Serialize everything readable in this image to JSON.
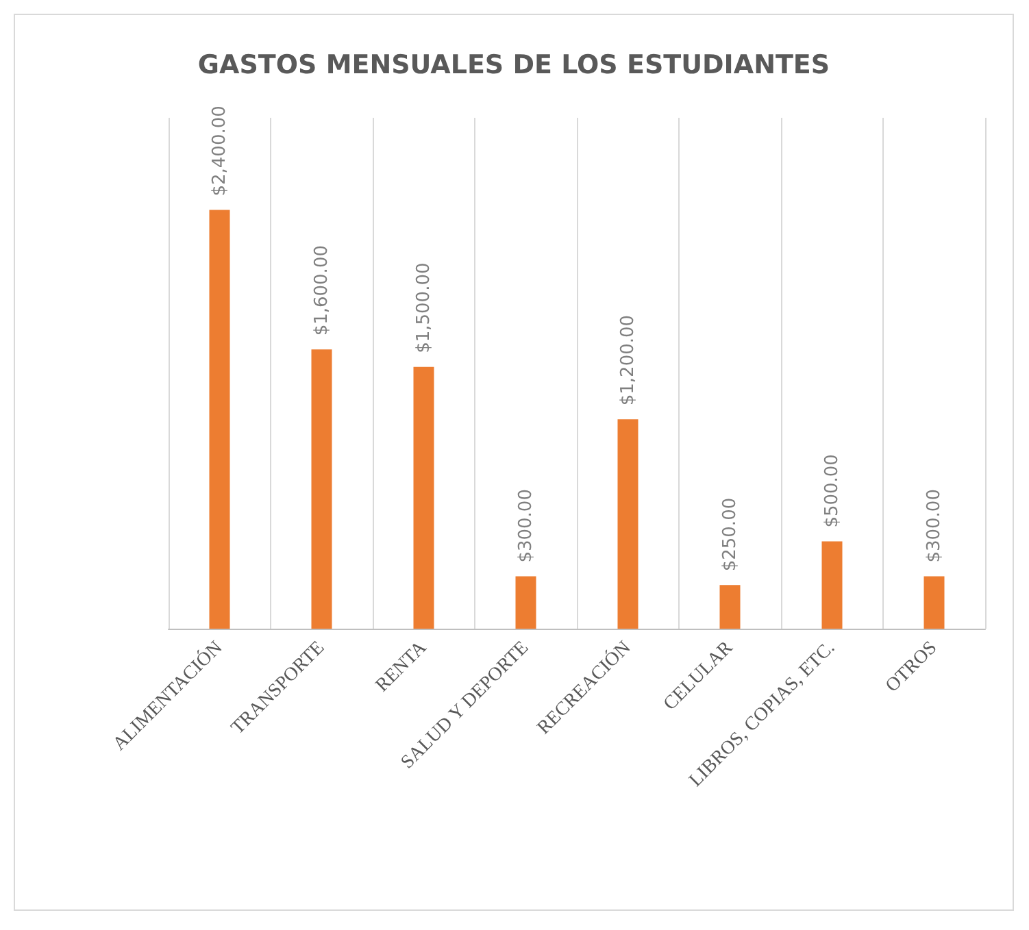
{
  "chart_data": {
    "type": "bar",
    "title": "GASTOS MENSUALES DE LOS ESTUDIANTES",
    "categories": [
      "ALIMENTACIÓN",
      "TRANSPORTE",
      "RENTA",
      "SALUD Y DEPORTE",
      "RECREACIÓN",
      "CELULAR",
      "LIBROS, COPIAS, ETC.",
      "OTROS"
    ],
    "values": [
      2400,
      1600,
      1500,
      300,
      1200,
      250,
      500,
      300
    ],
    "value_labels": [
      "$2,400.00",
      "$1,600.00",
      "$1,500.00",
      "$300.00",
      "$1,200.00",
      "$250.00",
      "$500.00",
      "$300.00"
    ],
    "color": "#ed7d31",
    "grid": "x"
  }
}
